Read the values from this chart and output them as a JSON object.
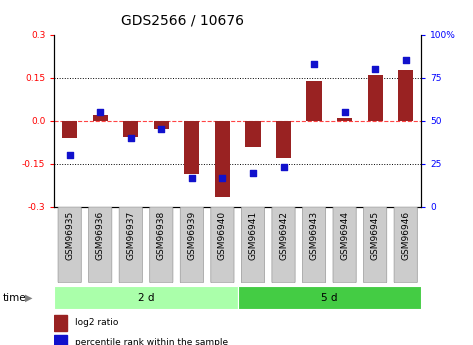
{
  "title": "GDS2566 / 10676",
  "samples": [
    "GSM96935",
    "GSM96936",
    "GSM96937",
    "GSM96938",
    "GSM96939",
    "GSM96940",
    "GSM96941",
    "GSM96942",
    "GSM96943",
    "GSM96944",
    "GSM96945",
    "GSM96946"
  ],
  "log2_ratio": [
    -0.06,
    0.02,
    -0.055,
    -0.03,
    -0.185,
    -0.265,
    -0.09,
    -0.13,
    0.14,
    0.01,
    0.16,
    0.175
  ],
  "percentile_rank": [
    30,
    55,
    40,
    45,
    17,
    17,
    20,
    23,
    83,
    55,
    80,
    85
  ],
  "groups": [
    {
      "label": "2 d",
      "start": 0,
      "end": 6,
      "color": "#aaffaa"
    },
    {
      "label": "5 d",
      "start": 6,
      "end": 12,
      "color": "#44cc44"
    }
  ],
  "ylim": [
    -0.3,
    0.3
  ],
  "yticks_left": [
    -0.3,
    -0.15,
    0.0,
    0.15,
    0.3
  ],
  "yticks_right": [
    0,
    25,
    50,
    75,
    100
  ],
  "bar_color": "#992222",
  "dot_color": "#1111CC",
  "zero_line_color": "#FF4444",
  "title_fontsize": 10,
  "tick_fontsize": 6.5,
  "label_fontsize": 7.5,
  "time_label": "time",
  "legend_log2": "log2 ratio",
  "legend_pct": "percentile rank within the sample"
}
